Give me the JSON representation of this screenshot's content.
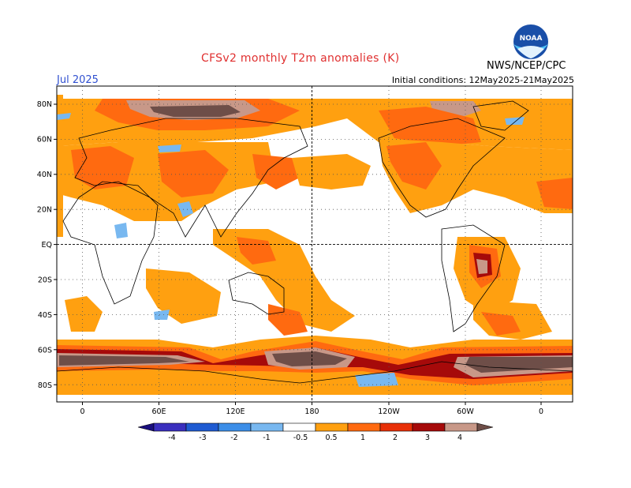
{
  "title": "CFSv2 monthly T2m anomalies (K)",
  "month": "Jul 2025",
  "initial_conditions": "Initial conditions: 12May2025-21May2025",
  "agency": "NWS/NCEP/CPC",
  "logo": {
    "text": "NOAA",
    "icon": "noaa-logo-icon"
  },
  "colors": {
    "title": "#e03030",
    "month": "#3050d0",
    "ocean": "#ffffff",
    "coast": "#000000"
  },
  "lat_labels": [
    "80N",
    "60N",
    "40N",
    "20N",
    "EQ",
    "20S",
    "40S",
    "60S",
    "80S"
  ],
  "lon_labels": [
    "0",
    "60E",
    "120E",
    "180",
    "120W",
    "60W",
    "0"
  ],
  "colorbar": {
    "bins": [
      {
        "color": "#1a0f7e"
      },
      {
        "color": "#3a2fbe"
      },
      {
        "color": "#1f5bd2"
      },
      {
        "color": "#3c8ee8"
      },
      {
        "color": "#78b8f0"
      },
      {
        "color": "#ffffff"
      },
      {
        "color": "#ffa010"
      },
      {
        "color": "#ff6a10"
      },
      {
        "color": "#e83008"
      },
      {
        "color": "#a60a0a"
      },
      {
        "color": "#c89888"
      },
      {
        "color": "#6e4e48"
      }
    ],
    "labels": [
      "-4",
      "-3",
      "-2",
      "-1",
      "-0.5",
      "0.5",
      "1",
      "2",
      "3",
      "4"
    ]
  }
}
